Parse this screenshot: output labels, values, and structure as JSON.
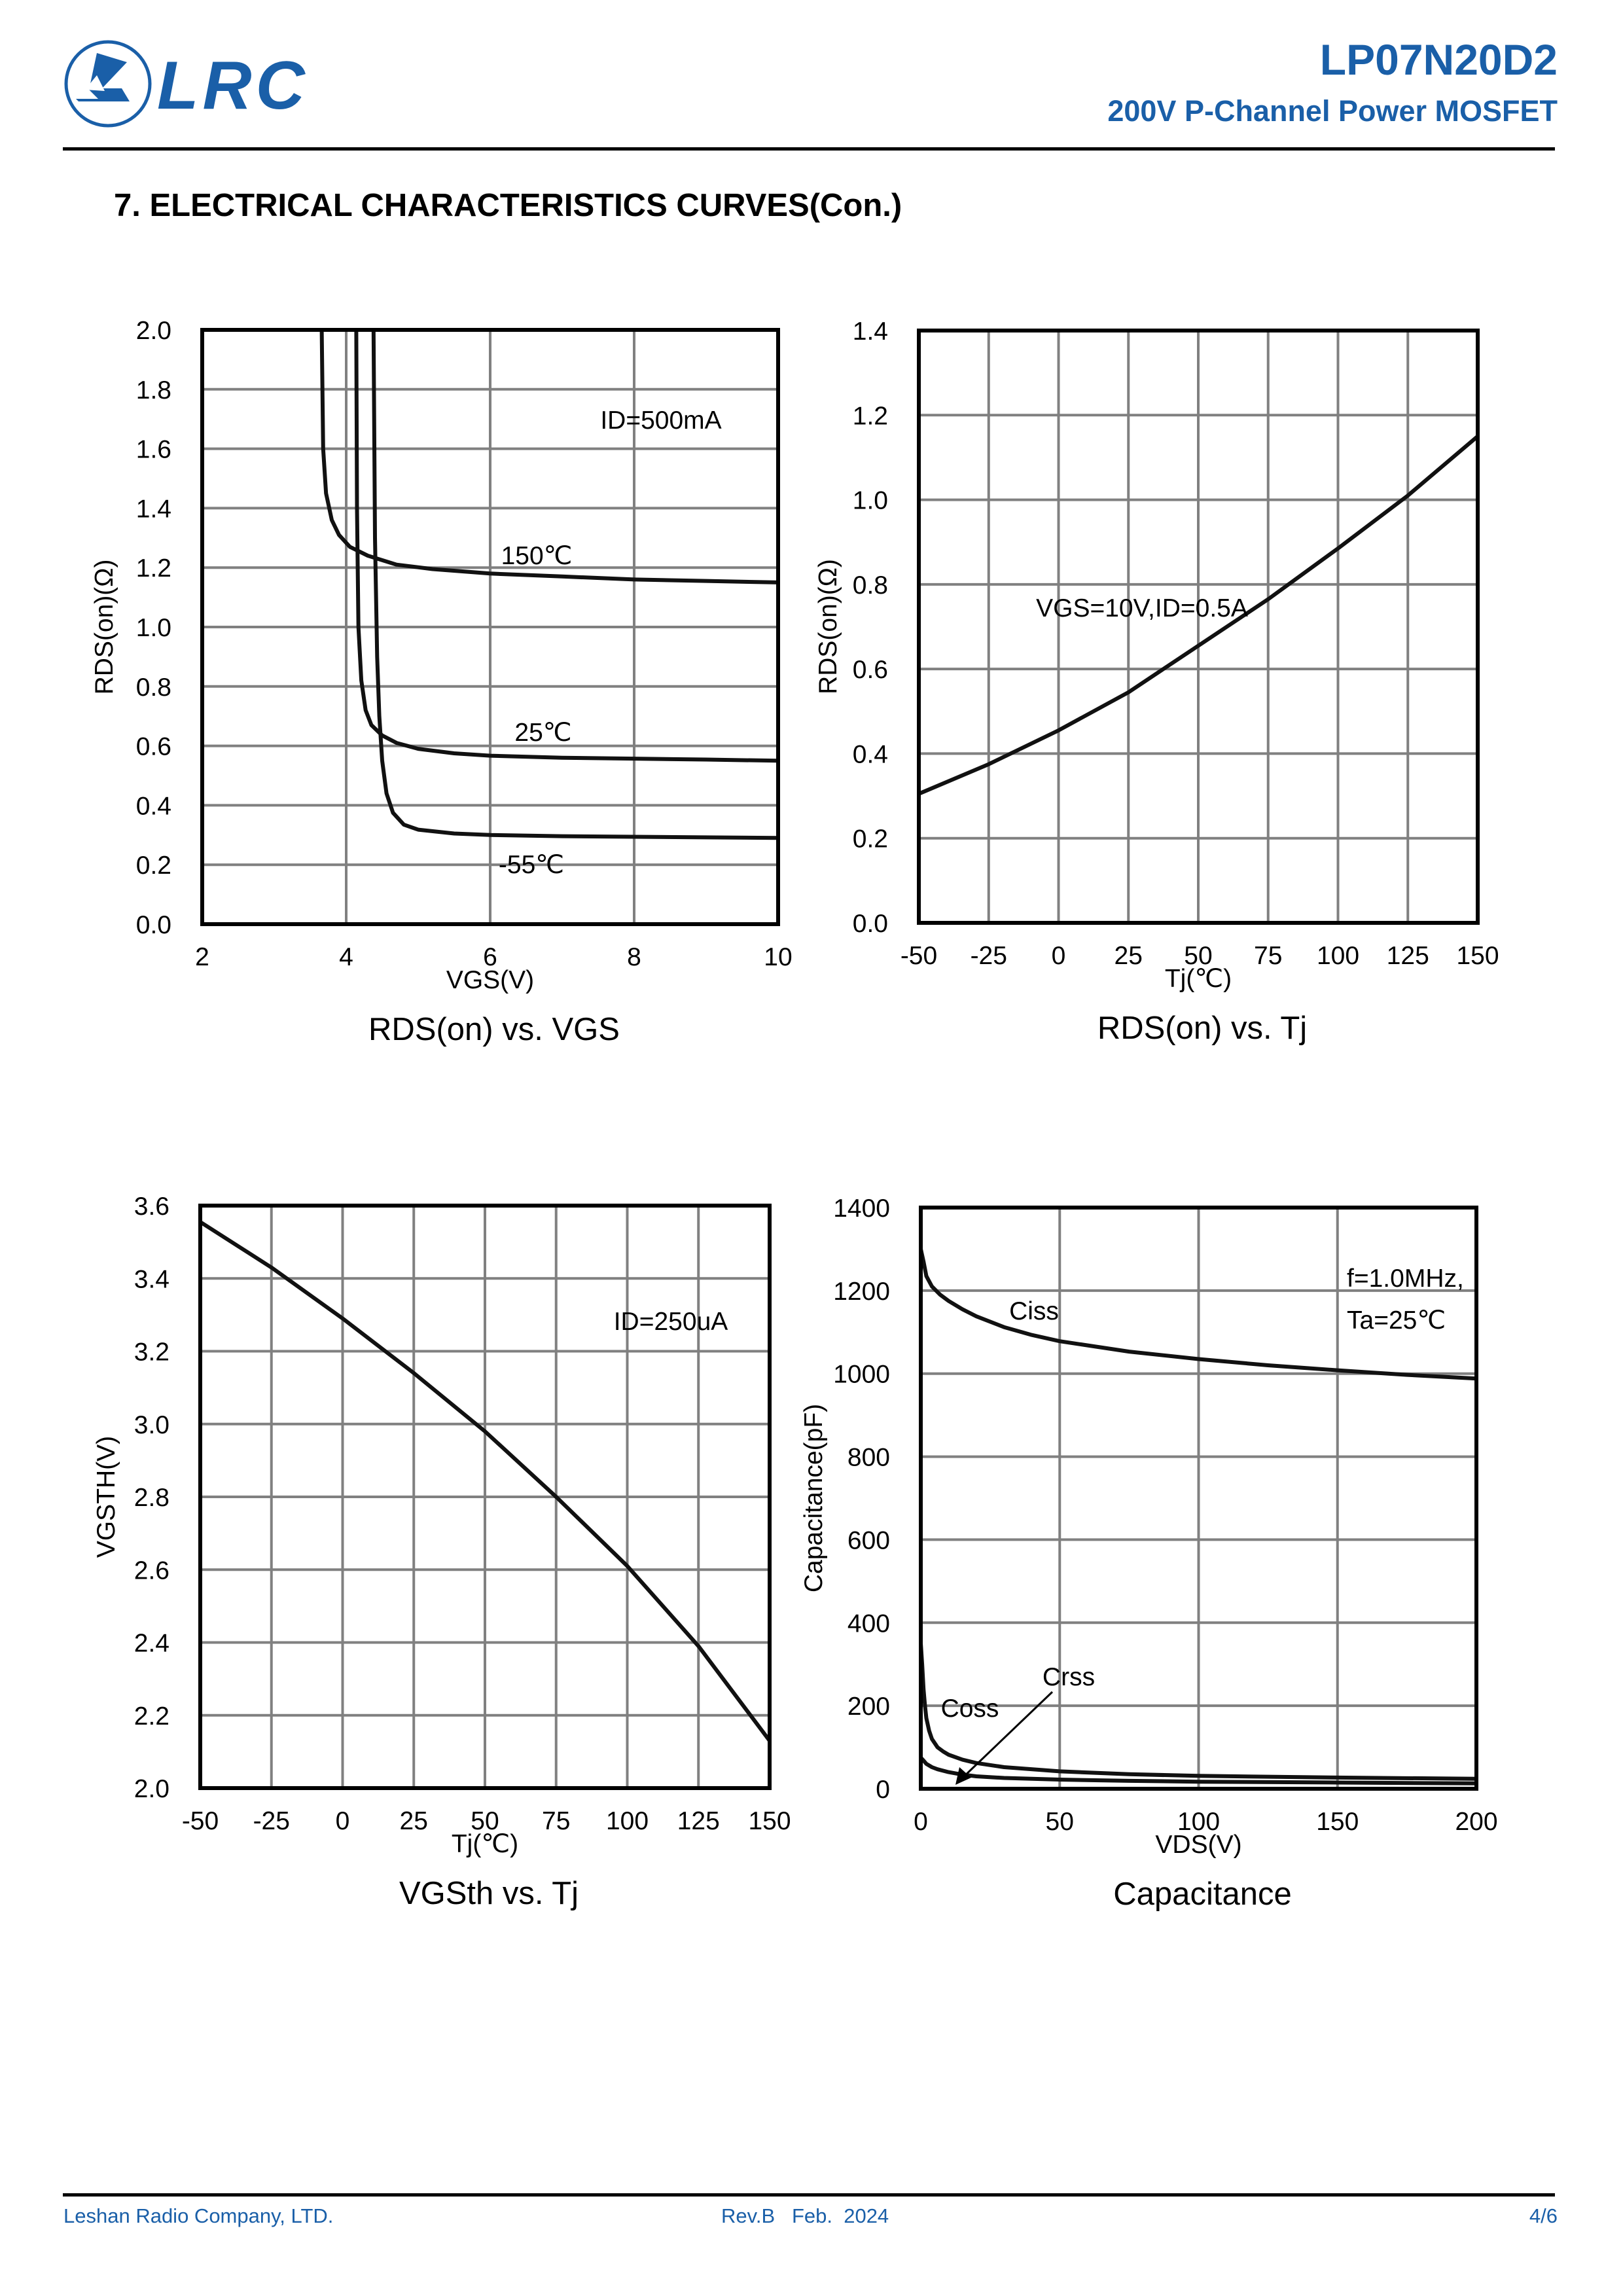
{
  "header": {
    "logo_text": "LRC",
    "part_number": "LP07N20D2",
    "subtitle": "200V P-Channel Power MOSFET",
    "brand_color": "#1a5fa8"
  },
  "section_title": "7. ELECTRICAL CHARACTERISTICS CURVES(Con.)",
  "footer": {
    "company": "Leshan Radio Company, LTD.",
    "revision": "Rev.B   Feb.  2024",
    "page": "4/6"
  },
  "chart_data": [
    {
      "type": "line",
      "title": "RDS(on) vs. VGS",
      "xlabel": "VGS(V)",
      "ylabel": "RDS(on)(Ω)",
      "xlim": [
        2,
        10
      ],
      "ylim": [
        0,
        2.0
      ],
      "xticks": [
        "2",
        "4",
        "6",
        "8",
        "10"
      ],
      "yticks": [
        "0.0",
        "0.2",
        "0.4",
        "0.6",
        "0.8",
        "1.0",
        "1.2",
        "1.4",
        "1.6",
        "1.8",
        "2.0"
      ],
      "grid": true,
      "annotations": [
        "ID=500mA"
      ],
      "series": [
        {
          "name": "150℃",
          "x": [
            3.66,
            3.68,
            3.72,
            3.8,
            3.9,
            4.05,
            4.3,
            4.7,
            5.2,
            6.0,
            7.0,
            8.0,
            9.0,
            10.0
          ],
          "y": [
            2.0,
            1.6,
            1.45,
            1.36,
            1.31,
            1.27,
            1.24,
            1.21,
            1.195,
            1.18,
            1.17,
            1.16,
            1.155,
            1.15
          ]
        },
        {
          "name": "25℃",
          "x": [
            4.14,
            4.15,
            4.17,
            4.21,
            4.27,
            4.35,
            4.5,
            4.7,
            5.0,
            5.5,
            6.0,
            7.0,
            8.0,
            9.0,
            10.0
          ],
          "y": [
            2.0,
            1.4,
            1.0,
            0.82,
            0.72,
            0.67,
            0.635,
            0.61,
            0.59,
            0.575,
            0.567,
            0.56,
            0.557,
            0.554,
            0.55
          ]
        },
        {
          "name": "-55℃",
          "x": [
            4.38,
            4.4,
            4.43,
            4.46,
            4.5,
            4.56,
            4.65,
            4.8,
            5.0,
            5.5,
            6.0,
            7.0,
            8.0,
            9.0,
            10.0
          ],
          "y": [
            2.0,
            1.3,
            0.9,
            0.7,
            0.55,
            0.44,
            0.375,
            0.335,
            0.318,
            0.305,
            0.3,
            0.296,
            0.294,
            0.292,
            0.29
          ]
        }
      ],
      "series_labels": [
        "150℃",
        "25℃",
        "-55℃"
      ]
    },
    {
      "type": "line",
      "title": "RDS(on) vs. Tj",
      "xlabel": "Tj(℃)",
      "ylabel": "RDS(on)(Ω)",
      "xlim": [
        -50,
        150
      ],
      "ylim": [
        0,
        1.4
      ],
      "xticks": [
        "-50",
        "-25",
        "0",
        "25",
        "50",
        "75",
        "100",
        "125",
        "150"
      ],
      "yticks": [
        "0.0",
        "0.2",
        "0.4",
        "0.6",
        "0.8",
        "1.0",
        "1.2",
        "1.4"
      ],
      "grid": true,
      "annotations": [
        "VGS=10V,ID=0.5A"
      ],
      "series": [
        {
          "name": "RDS(on)",
          "x": [
            -50,
            -25,
            0,
            25,
            50,
            75,
            100,
            125,
            150
          ],
          "y": [
            0.305,
            0.375,
            0.455,
            0.545,
            0.655,
            0.765,
            0.885,
            1.01,
            1.15
          ]
        }
      ]
    },
    {
      "type": "line",
      "title": "VGSth vs. Tj",
      "xlabel": "Tj(℃)",
      "ylabel": "VGSTH(V)",
      "xlim": [
        -50,
        150
      ],
      "ylim": [
        2.0,
        3.6
      ],
      "xticks": [
        "-50",
        "-25",
        "0",
        "25",
        "50",
        "75",
        "100",
        "125",
        "150"
      ],
      "yticks": [
        "2.0",
        "2.2",
        "2.4",
        "2.6",
        "2.8",
        "3.0",
        "3.2",
        "3.4",
        "3.6"
      ],
      "grid": true,
      "annotations": [
        "ID=250uA"
      ],
      "series": [
        {
          "name": "VGSth",
          "x": [
            -50,
            -25,
            0,
            25,
            50,
            75,
            100,
            125,
            150
          ],
          "y": [
            3.555,
            3.43,
            3.29,
            3.14,
            2.98,
            2.8,
            2.61,
            2.39,
            2.13
          ]
        }
      ]
    },
    {
      "type": "line",
      "title": "Capacitance",
      "xlabel": "VDS(V)",
      "ylabel": "Capacitance(pF)",
      "xlim": [
        0,
        200
      ],
      "ylim": [
        0,
        1400
      ],
      "xticks": [
        "0",
        "50",
        "100",
        "150",
        "200"
      ],
      "yticks": [
        "0",
        "200",
        "400",
        "600",
        "800",
        "1000",
        "1200",
        "1400"
      ],
      "grid": true,
      "annotations": [
        "f=1.0MHz,",
        "Ta=25℃"
      ],
      "series": [
        {
          "name": "Ciss",
          "x": [
            0,
            1,
            2,
            4,
            7,
            10,
            15,
            20,
            30,
            40,
            50,
            75,
            100,
            125,
            150,
            175,
            200
          ],
          "y": [
            1300,
            1270,
            1235,
            1210,
            1190,
            1175,
            1155,
            1138,
            1112,
            1093,
            1078,
            1053,
            1035,
            1020,
            1008,
            997,
            988
          ]
        },
        {
          "name": "Coss",
          "x": [
            0,
            0.5,
            1,
            1.5,
            2,
            3,
            4,
            6,
            8,
            10,
            15,
            20,
            30,
            50,
            75,
            100,
            150,
            200
          ],
          "y": [
            350,
            300,
            240,
            200,
            170,
            140,
            120,
            100,
            90,
            82,
            70,
            62,
            52,
            42,
            35,
            31,
            27,
            24
          ]
        },
        {
          "name": "Crss",
          "x": [
            0,
            1,
            2,
            4,
            6,
            10,
            15,
            20,
            30,
            50,
            75,
            100,
            150,
            200
          ],
          "y": [
            75,
            68,
            60,
            52,
            47,
            40,
            34,
            30,
            26,
            22,
            19,
            17,
            15,
            13
          ]
        }
      ],
      "series_labels": [
        "Ciss",
        "Coss",
        "Crss"
      ]
    }
  ]
}
